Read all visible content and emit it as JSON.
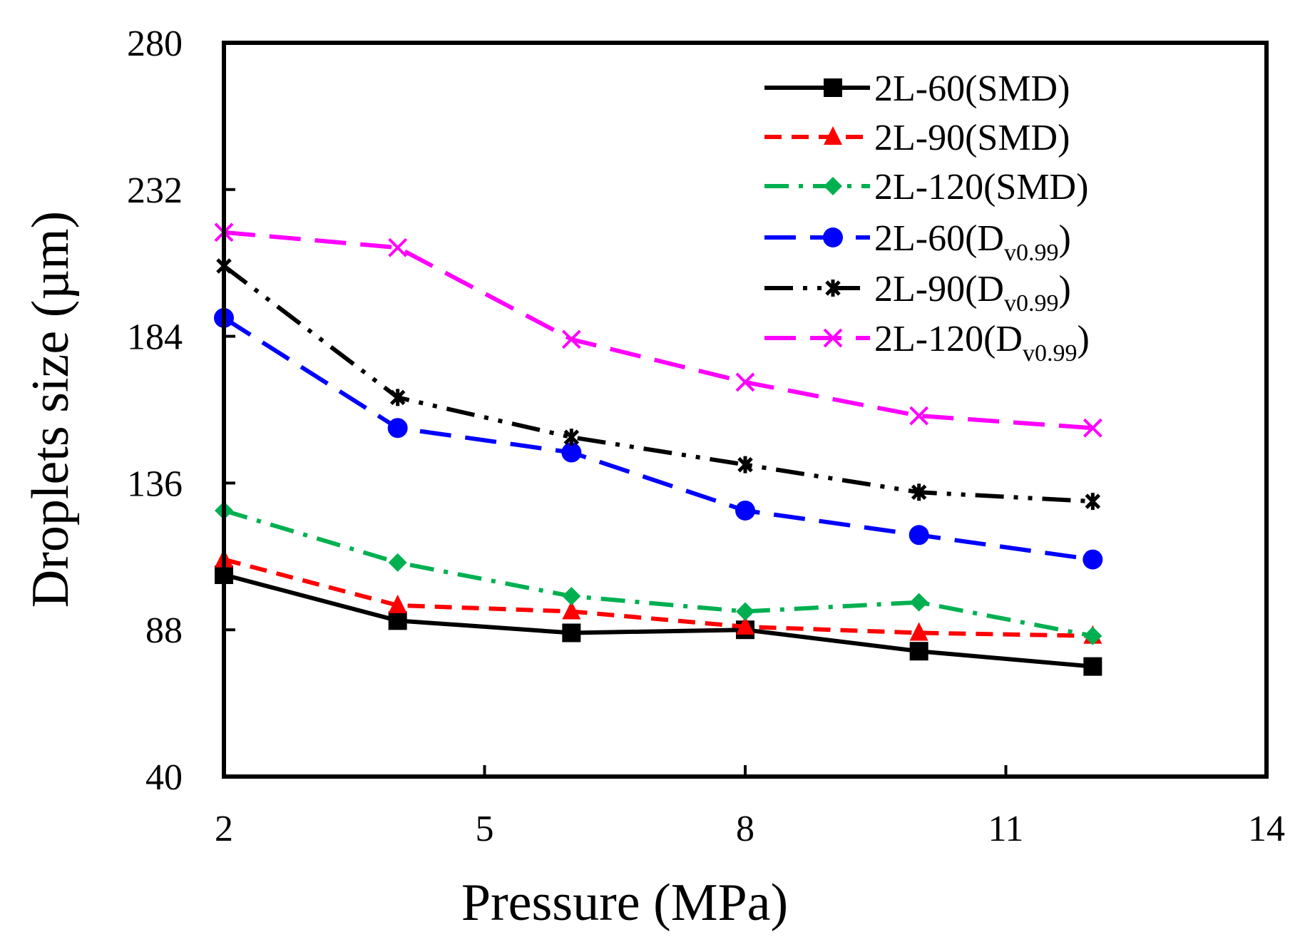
{
  "chart_data": {
    "type": "line",
    "title": "",
    "xlabel": "Pressure (MPa)",
    "ylabel": "Droplets size (µm)",
    "xlim": [
      2,
      14
    ],
    "ylim": [
      40,
      280
    ],
    "xticks": [
      "2",
      "5",
      "8",
      "11",
      "14"
    ],
    "yticks": [
      "40",
      "88",
      "136",
      "184",
      "232",
      "280"
    ],
    "grid": false,
    "legend_position": "top-right",
    "x": [
      2,
      4,
      6,
      8,
      10,
      12
    ],
    "series": [
      {
        "name": "2L-60(SMD)",
        "name_main": "2L-60(SMD)",
        "name_sub": "",
        "name_end": "",
        "color": "#000000",
        "dash": "solid",
        "marker": "square",
        "values": [
          106,
          91,
          87,
          88,
          81,
          76
        ]
      },
      {
        "name": "2L-90(SMD)",
        "name_main": "2L-90(SMD)",
        "name_sub": "",
        "name_end": "",
        "color": "#ff0000",
        "dash": "dash",
        "marker": "triangle",
        "values": [
          111,
          96,
          94,
          89,
          87,
          86
        ]
      },
      {
        "name": "2L-120(SMD)",
        "name_main": "2L-120(SMD)",
        "name_sub": "",
        "name_end": "",
        "color": "#00b050",
        "dash": "dashdot",
        "marker": "diamond",
        "values": [
          127,
          110,
          99,
          94,
          97,
          86
        ]
      },
      {
        "name": "2L-60(Dv0.99)",
        "name_main": "2L-60(D",
        "name_sub": "v0.99",
        "name_end": ")",
        "color": "#0000ff",
        "dash": "longdash",
        "marker": "circle",
        "values": [
          190,
          154,
          146,
          127,
          119,
          111
        ]
      },
      {
        "name": "2L-90(Dv0.99)",
        "name_main": "2L-90(D",
        "name_sub": "v0.99",
        "name_end": ")",
        "color": "#000000",
        "dash": "dashdotdot",
        "marker": "asterisk",
        "values": [
          207,
          164,
          151,
          142,
          133,
          130
        ]
      },
      {
        "name": "2L-120(Dv0.99)",
        "name_main": "2L-120(D",
        "name_sub": "v0.99",
        "name_end": ")",
        "color": "#ff00ff",
        "dash": "longdash",
        "marker": "x",
        "values": [
          218,
          213,
          183,
          169,
          158,
          154
        ]
      }
    ]
  }
}
